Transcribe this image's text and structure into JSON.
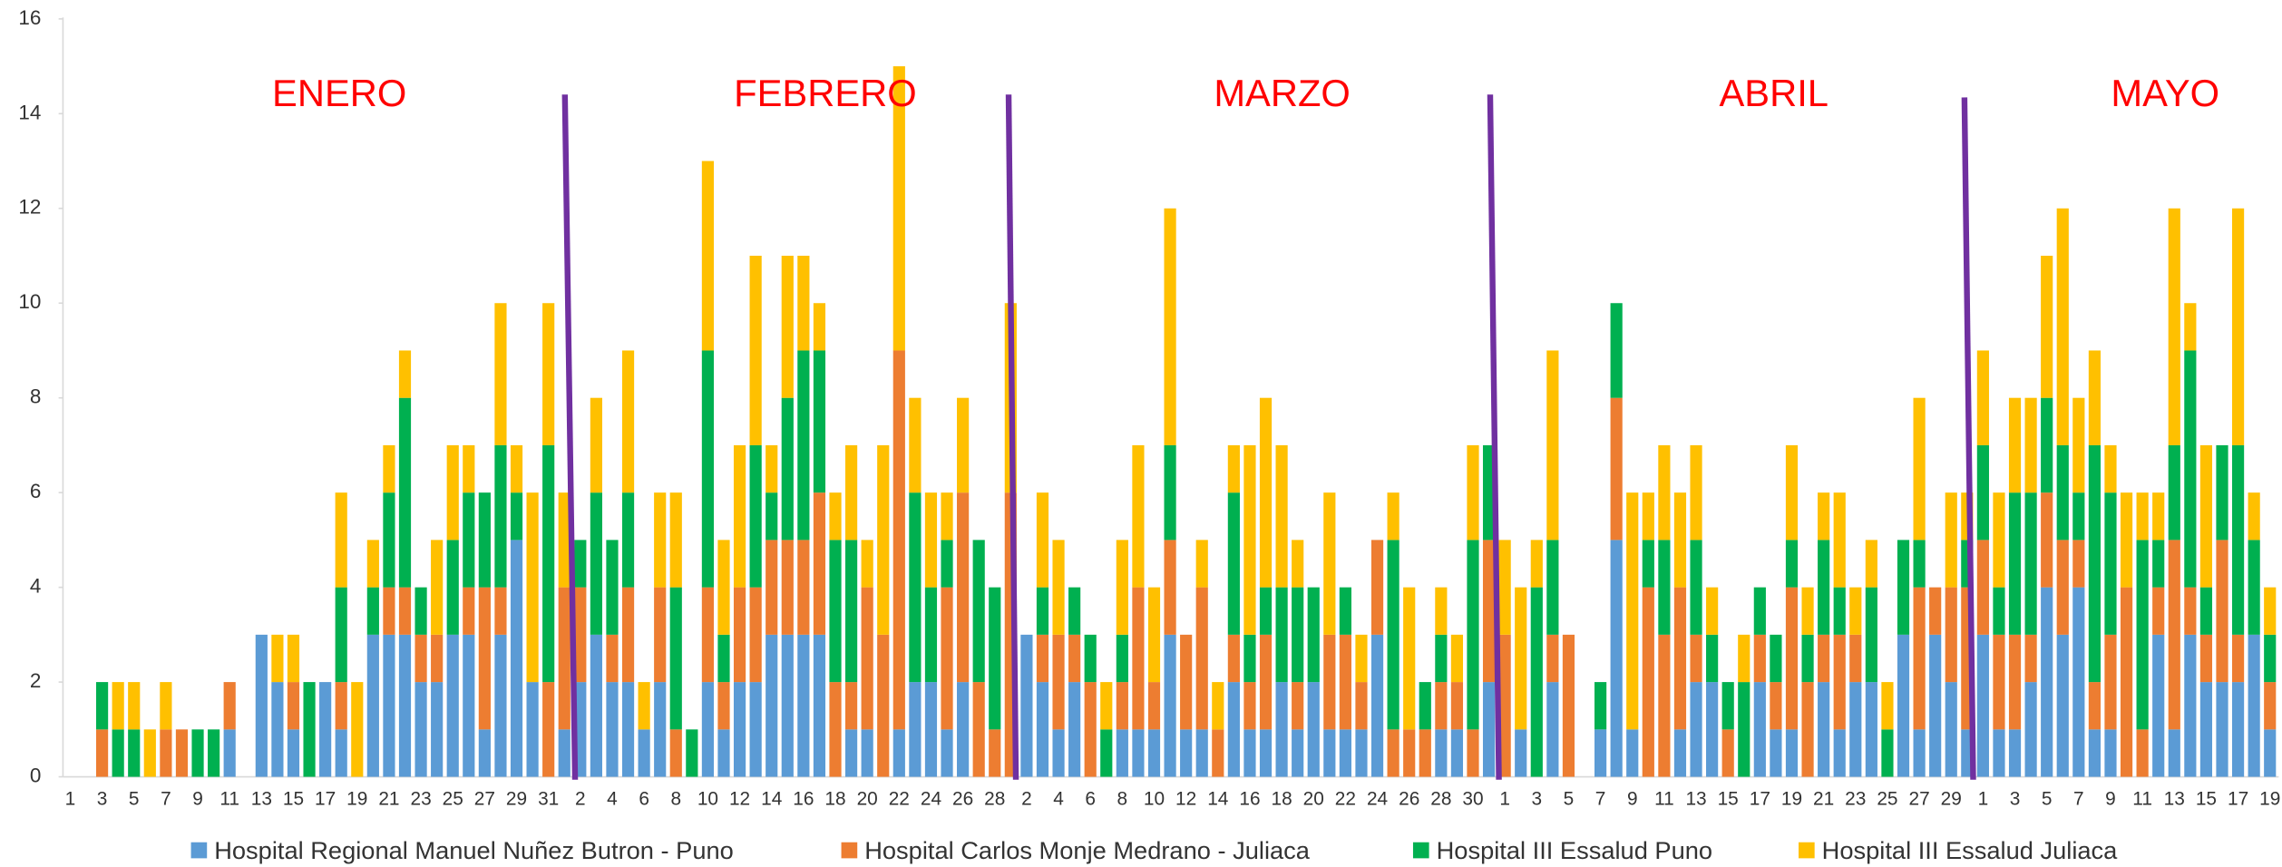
{
  "chart_data": {
    "type": "stacked-bar",
    "annotations": [
      "ENERO",
      "FEBRERO",
      "MARZO",
      "ABRIL",
      "MAYO"
    ],
    "categories": [
      "1",
      null,
      "3",
      null,
      "5",
      null,
      "7",
      null,
      "9",
      null,
      "11",
      null,
      "13",
      null,
      "15",
      null,
      "17",
      null,
      "19",
      null,
      "21",
      null,
      "23",
      null,
      "25",
      null,
      "27",
      null,
      "29",
      null,
      "31",
      null,
      "2",
      null,
      "4",
      null,
      "6",
      null,
      "8",
      null,
      "10",
      null,
      "12",
      null,
      "14",
      null,
      "16",
      null,
      "18",
      null,
      "20",
      null,
      "22",
      null,
      "24",
      null,
      "26",
      null,
      "28",
      null,
      "2",
      null,
      "4",
      null,
      "6",
      null,
      "8",
      null,
      "10",
      null,
      "12",
      null,
      "14",
      null,
      "16",
      null,
      "18",
      null,
      "20",
      null,
      "22",
      null,
      "24",
      null,
      "26",
      null,
      "28",
      null,
      "30",
      null,
      "1",
      null,
      "3",
      null,
      "5",
      null,
      "7",
      null,
      "9",
      null,
      "11",
      null,
      "13",
      null,
      "15",
      null,
      "17",
      null,
      "19",
      null,
      "21",
      null,
      "23",
      null,
      "25",
      null,
      "27",
      null,
      "29",
      null,
      "1",
      null,
      "3",
      null,
      "5",
      null,
      "7",
      null,
      "9",
      null,
      "11",
      null,
      "13",
      null,
      "15",
      null,
      "17",
      null,
      "19"
    ],
    "series": [
      {
        "name": "Hospital Regional Manuel Nuñez Butron - Puno",
        "color": "#5b9bd5",
        "values": [
          0,
          0,
          0,
          0,
          0,
          0,
          0,
          0,
          0,
          0,
          1,
          0,
          3,
          2,
          1,
          0,
          2,
          1,
          0,
          3,
          3,
          3,
          2,
          2,
          3,
          3,
          1,
          3,
          5,
          2,
          0,
          1,
          2,
          3,
          2,
          2,
          1,
          2,
          0,
          0,
          2,
          1,
          2,
          2,
          3,
          3,
          3,
          3,
          0,
          1,
          1,
          0,
          1,
          2,
          2,
          1,
          2,
          0,
          0,
          0,
          3,
          2,
          1,
          2,
          0,
          0,
          1,
          1,
          1,
          3,
          1,
          1,
          0,
          2,
          1,
          1,
          2,
          1,
          2,
          1,
          1,
          1,
          3,
          0,
          0,
          0,
          1,
          1,
          0,
          2,
          0,
          1,
          0,
          2,
          0,
          0,
          1,
          5,
          1,
          0,
          0,
          1,
          2,
          2,
          0,
          0,
          2,
          1,
          1,
          0,
          2,
          1,
          2,
          2,
          0,
          3,
          1,
          3,
          2,
          1,
          3,
          1,
          1,
          2,
          4,
          3,
          4,
          1,
          1,
          0,
          0,
          3,
          1,
          3,
          2,
          2,
          2,
          3,
          1
        ]
      },
      {
        "name": "Hospital Carlos Monje Medrano - Juliaca",
        "color": "#ed7d31",
        "values": [
          0,
          0,
          1,
          0,
          0,
          0,
          1,
          1,
          0,
          0,
          1,
          0,
          0,
          0,
          1,
          0,
          0,
          1,
          0,
          0,
          1,
          1,
          1,
          1,
          0,
          1,
          3,
          1,
          0,
          0,
          2,
          3,
          2,
          0,
          1,
          2,
          0,
          2,
          1,
          0,
          2,
          1,
          2,
          2,
          2,
          2,
          2,
          3,
          2,
          1,
          3,
          3,
          8,
          0,
          0,
          3,
          4,
          2,
          1,
          6,
          0,
          1,
          2,
          1,
          2,
          0,
          1,
          3,
          1,
          2,
          2,
          3,
          1,
          1,
          1,
          2,
          0,
          1,
          0,
          2,
          2,
          1,
          2,
          1,
          1,
          1,
          1,
          1,
          1,
          3,
          3,
          0,
          0,
          1,
          3,
          0,
          0,
          3,
          0,
          4,
          3,
          3,
          1,
          0,
          1,
          0,
          1,
          1,
          3,
          2,
          1,
          2,
          1,
          0,
          0,
          0,
          3,
          1,
          2,
          3,
          2,
          2,
          2,
          1,
          2,
          2,
          1,
          1,
          2,
          4,
          1,
          1,
          4,
          1,
          1,
          3,
          1,
          0,
          1
        ]
      },
      {
        "name": "Hospital III Essalud Puno",
        "color": "#00b050",
        "values": [
          0,
          0,
          1,
          1,
          1,
          0,
          0,
          0,
          1,
          1,
          0,
          0,
          0,
          0,
          0,
          2,
          0,
          2,
          0,
          1,
          2,
          4,
          1,
          0,
          2,
          2,
          2,
          3,
          1,
          0,
          5,
          0,
          1,
          3,
          2,
          2,
          0,
          0,
          3,
          1,
          5,
          1,
          0,
          3,
          1,
          3,
          4,
          3,
          3,
          3,
          0,
          0,
          0,
          4,
          2,
          1,
          0,
          3,
          3,
          0,
          0,
          1,
          0,
          1,
          1,
          1,
          1,
          0,
          0,
          2,
          0,
          0,
          0,
          3,
          1,
          1,
          2,
          2,
          2,
          0,
          1,
          0,
          0,
          4,
          0,
          1,
          1,
          0,
          4,
          2,
          0,
          0,
          4,
          2,
          0,
          0,
          1,
          2,
          0,
          1,
          2,
          0,
          2,
          1,
          1,
          2,
          1,
          1,
          1,
          1,
          2,
          1,
          0,
          2,
          1,
          2,
          1,
          0,
          0,
          1,
          2,
          1,
          3,
          3,
          2,
          2,
          1,
          5,
          3,
          0,
          4,
          1,
          2,
          5,
          1,
          2,
          4,
          2,
          1
        ]
      },
      {
        "name": "Hospital III Essalud Juliaca",
        "color": "#ffc000",
        "values": [
          0,
          0,
          0,
          1,
          1,
          1,
          1,
          0,
          0,
          0,
          0,
          0,
          0,
          1,
          1,
          0,
          0,
          2,
          2,
          1,
          1,
          1,
          0,
          2,
          2,
          1,
          0,
          3,
          1,
          4,
          3,
          2,
          0,
          2,
          0,
          3,
          1,
          2,
          2,
          0,
          4,
          2,
          3,
          4,
          1,
          3,
          2,
          1,
          1,
          2,
          1,
          4,
          6,
          2,
          2,
          1,
          2,
          0,
          0,
          4,
          0,
          2,
          2,
          0,
          0,
          1,
          2,
          3,
          2,
          5,
          0,
          1,
          1,
          1,
          4,
          4,
          3,
          1,
          0,
          3,
          0,
          1,
          0,
          1,
          3,
          0,
          1,
          1,
          2,
          0,
          2,
          3,
          1,
          4,
          0,
          0,
          0,
          0,
          5,
          1,
          2,
          2,
          2,
          1,
          0,
          1,
          0,
          0,
          2,
          1,
          1,
          2,
          1,
          1,
          1,
          0,
          3,
          0,
          2,
          1,
          2,
          2,
          2,
          2,
          3,
          5,
          2,
          2,
          1,
          2,
          1,
          1,
          5,
          1,
          3,
          0,
          5,
          1,
          1
        ]
      }
    ],
    "ylim": [
      0,
      16
    ],
    "yticks": [
      0,
      2,
      4,
      6,
      8,
      10,
      12,
      14,
      16
    ],
    "grid": false,
    "legend": "bottom"
  }
}
